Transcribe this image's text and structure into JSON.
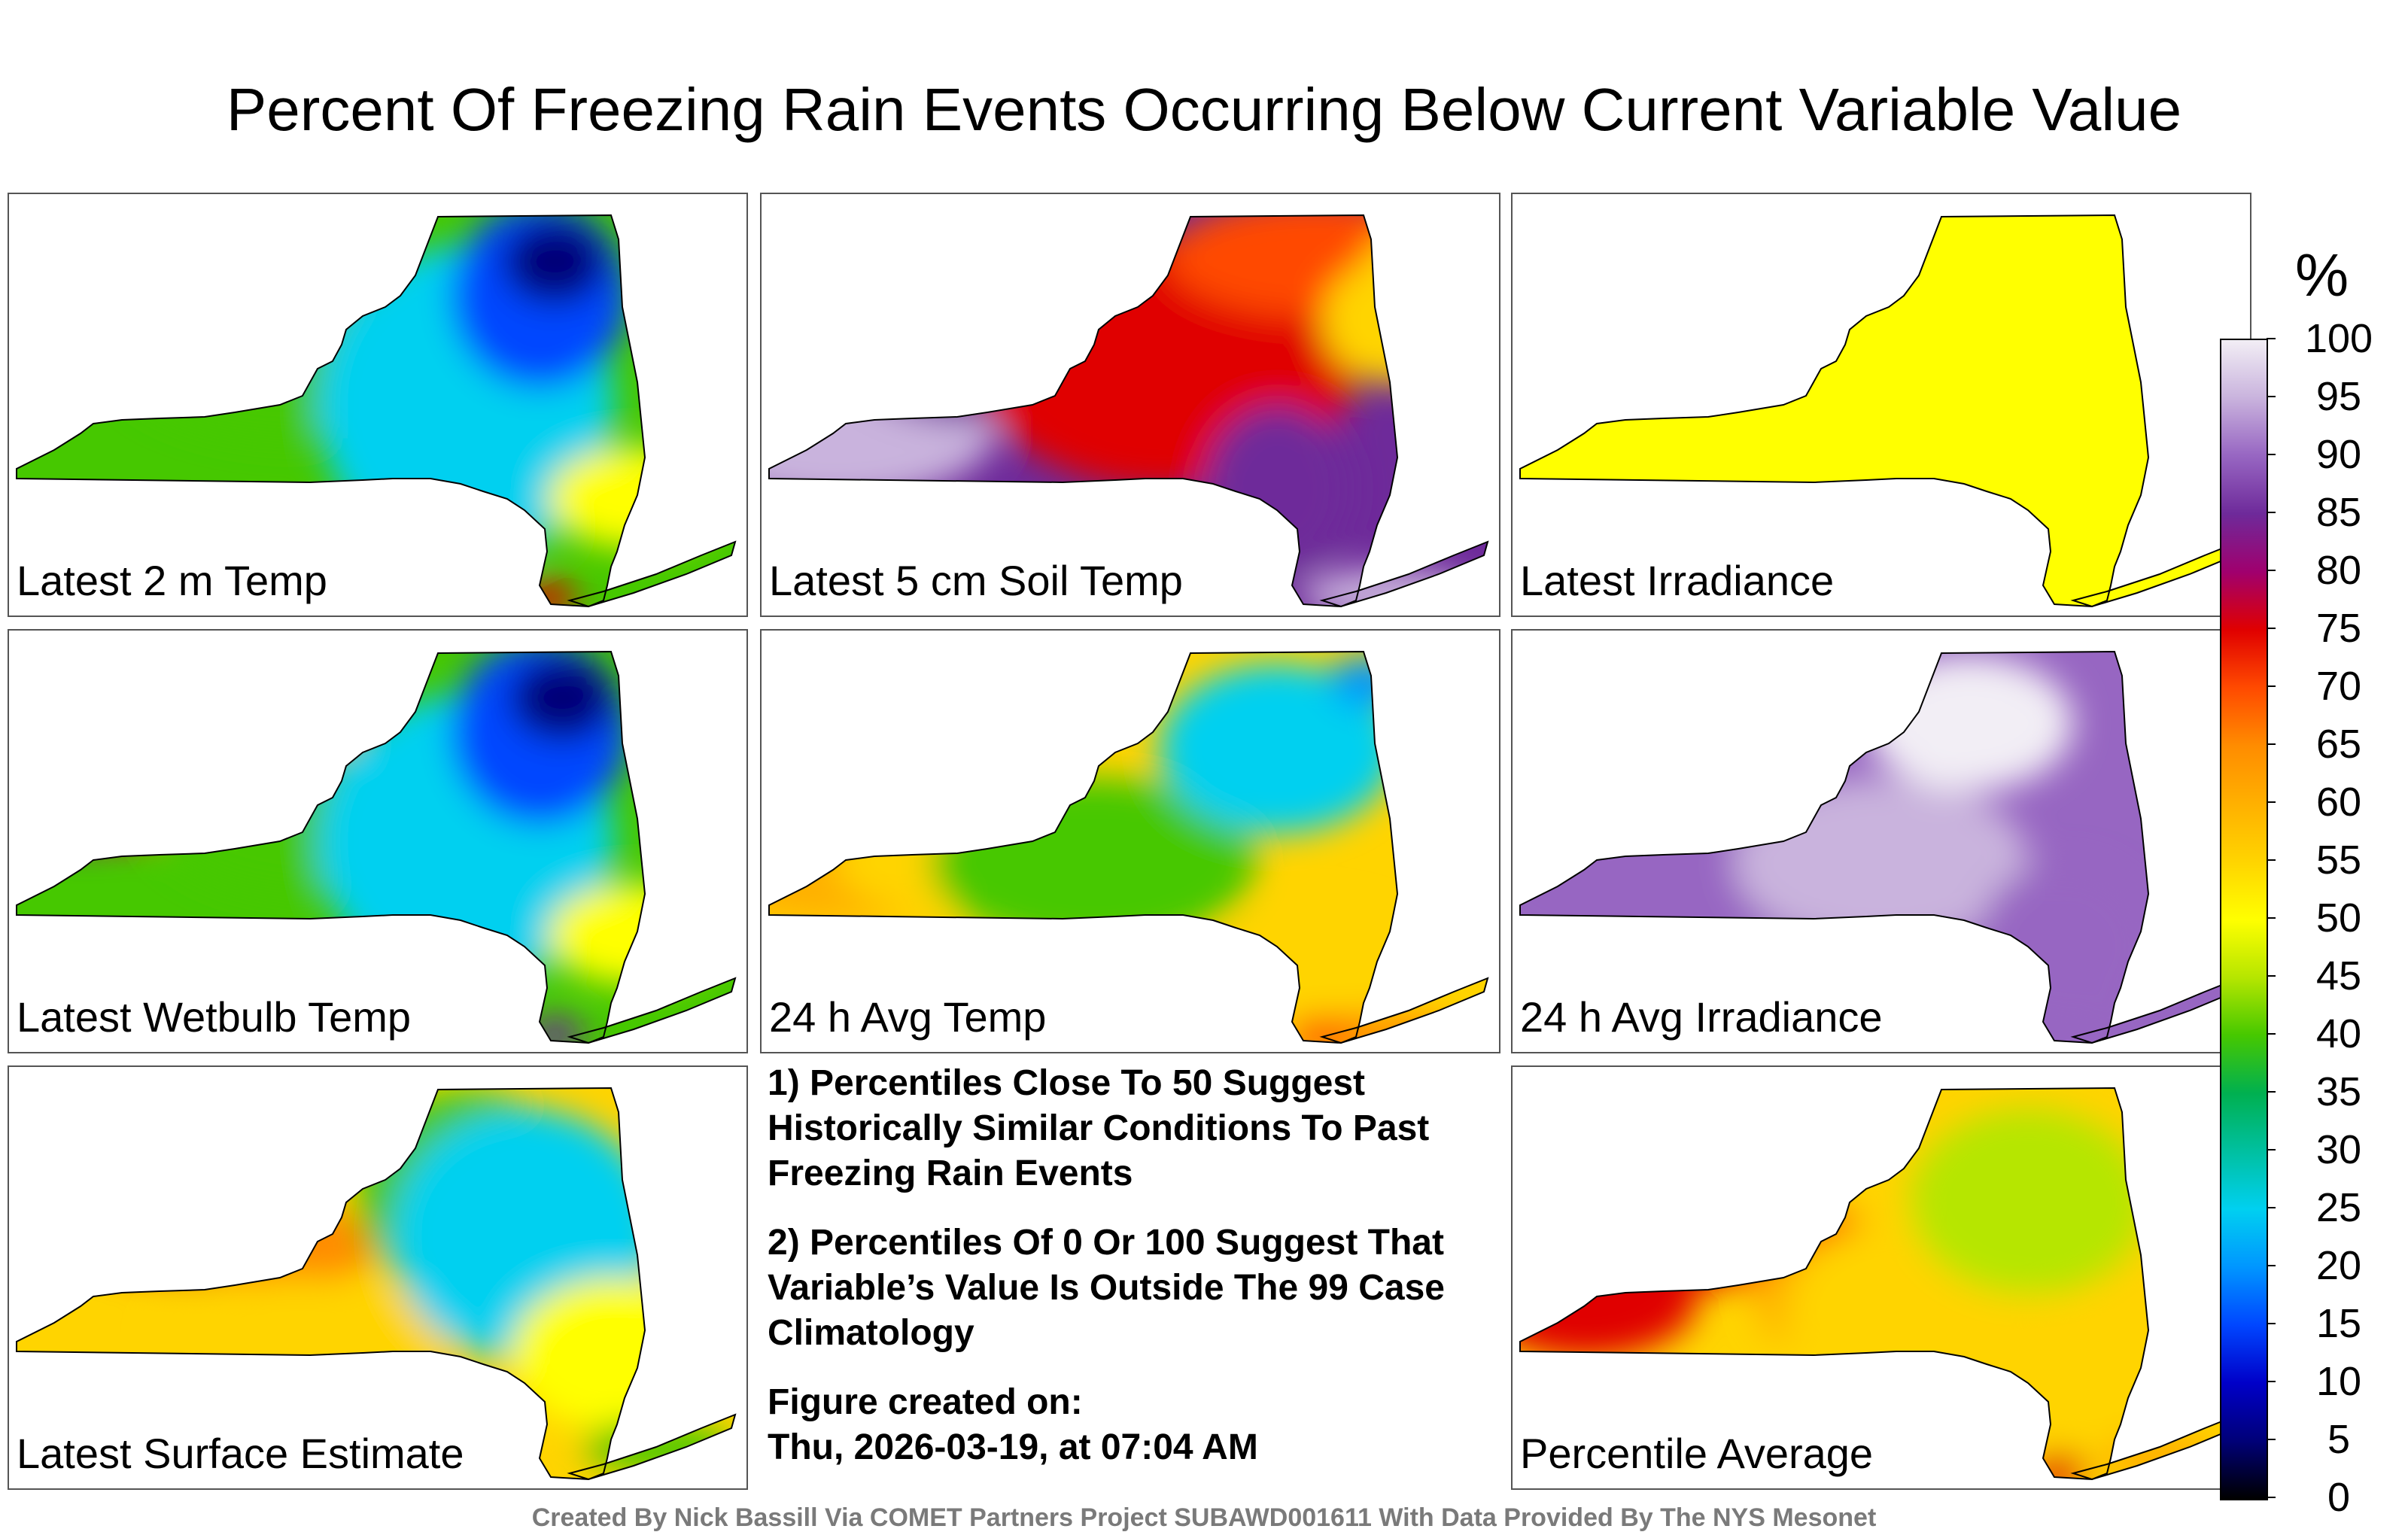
{
  "title": "Percent Of Freezing Rain Events Occurring Below Current Variable Value",
  "panels": [
    {
      "label": "Latest 2 m Temp",
      "scheme": "temp2m"
    },
    {
      "label": "Latest 5 cm Soil Temp",
      "scheme": "soil"
    },
    {
      "label": "Latest Irradiance",
      "scheme": "irr"
    },
    {
      "label": "Latest Wetbulb Temp",
      "scheme": "wetbulb"
    },
    {
      "label": "24 h Avg Temp",
      "scheme": "avgtemp"
    },
    {
      "label": "24 h Avg Irradiance",
      "scheme": "avgirr"
    },
    {
      "label": "Latest Surface Estimate",
      "scheme": "surface"
    },
    {
      "label": "Percentile Average",
      "scheme": "avg"
    }
  ],
  "notes": {
    "note1": "1) Percentiles Close To 50 Suggest Historically Similar Conditions To Past Freezing Rain Events",
    "note2": "2) Percentiles Of 0 Or 100 Suggest That Variable’s Value Is Outside The 99 Case Climatology",
    "created_label": "Figure created on:",
    "created_date": "Thu, 2026-03-19, at 07:04 AM"
  },
  "colorbar": {
    "unit": "%",
    "ticks": [
      "100",
      "95",
      "90",
      "85",
      "80",
      "75",
      "70",
      "65",
      "60",
      "55",
      "50",
      "45",
      "40",
      "35",
      "30",
      "25",
      "20",
      "15",
      "10",
      "5",
      "0"
    ],
    "colors": [
      "#f2eef5",
      "#c9b3dd",
      "#9766c2",
      "#6e2a9a",
      "#a0006e",
      "#e00000",
      "#ff4a00",
      "#ff8c00",
      "#ffb000",
      "#ffd400",
      "#ffff00",
      "#b6e600",
      "#46c800",
      "#00b050",
      "#00c0a0",
      "#00d0f0",
      "#0096ff",
      "#0046ff",
      "#0000c8",
      "#000078",
      "#000000"
    ]
  },
  "footer": "Created By Nick Bassill Via COMET Partners Project SUBAWD001611 With Data Provided By The NYS Mesonet"
}
